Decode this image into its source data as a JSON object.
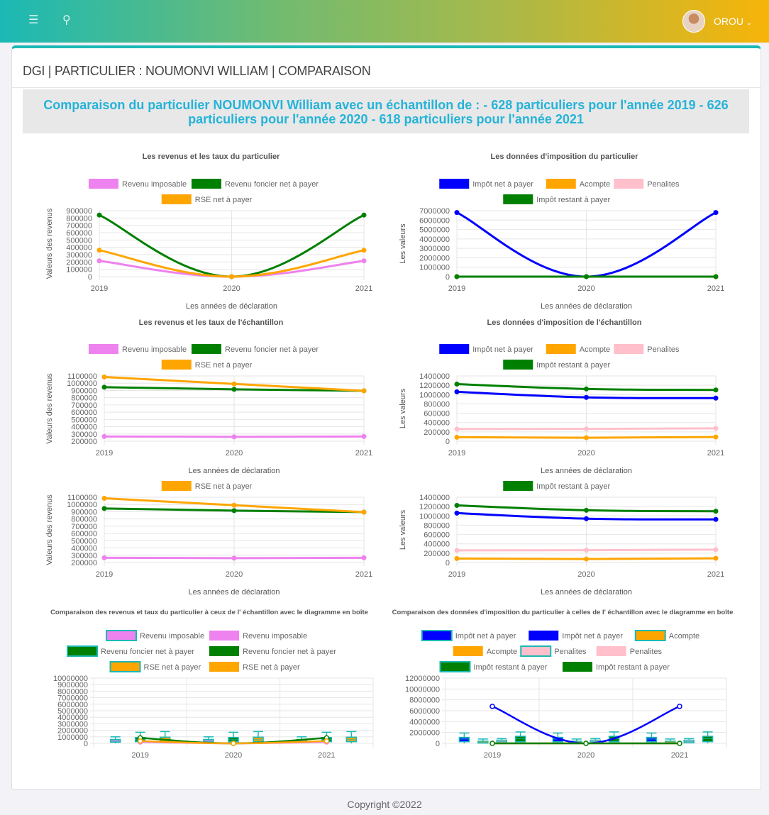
{
  "header": {
    "user_name": "OROU",
    "menu_icon": "bars-icon",
    "search_icon": "search-icon"
  },
  "page": {
    "title": "DGI | PARTICULIER : NOUMONVI WILLIAM | COMPARAISON",
    "banner": "Comparaison du particulier NOUMONVI William avec un échantillon de : - 628 particuliers pour l'année 2019 - 626 particuliers pour l'année 2020 - 618 particuliers pour l'année 2021"
  },
  "footer": {
    "text": "Copyright ©2022"
  },
  "colors": {
    "accent": "#1bb9b5",
    "banner_text": "#25b3d9",
    "violet": "#ee82ee",
    "green": "#008000",
    "orange": "#ffa500",
    "blue": "#0000ff",
    "pink": "#ffc0cb"
  },
  "chart_data": [
    {
      "id": "c1",
      "type": "line",
      "title": "Les revenus et les taux du particulier",
      "xlabel": "Les années de déclaration",
      "ylabel": "Valeurs des revenus",
      "categories": [
        "2019",
        "2020",
        "2021"
      ],
      "ylim": [
        0,
        900000
      ],
      "yticks": [
        "900000",
        "800000",
        "700000",
        "600000",
        "500000",
        "400000",
        "300000",
        "200000",
        "100000",
        "0"
      ],
      "legend": [
        [
          "Revenu imposable",
          "Revenu foncier net à payer"
        ],
        [
          "RSE net à payer"
        ]
      ],
      "series": [
        {
          "name": "Revenu imposable",
          "color": "#ee82ee",
          "values": [
            215000,
            0,
            215000
          ]
        },
        {
          "name": "Revenu foncier net à payer",
          "color": "#008000",
          "values": [
            840000,
            0,
            840000
          ]
        },
        {
          "name": "RSE net à payer",
          "color": "#ffa500",
          "values": [
            360000,
            0,
            360000
          ]
        }
      ]
    },
    {
      "id": "c2",
      "type": "line",
      "title": "Les données d'imposition du particulier",
      "xlabel": "Les années de déclaration",
      "ylabel": "Les valeurs",
      "categories": [
        "2019",
        "2020",
        "2021"
      ],
      "ylim": [
        0,
        7000000
      ],
      "yticks": [
        "7000000",
        "6000000",
        "5000000",
        "4000000",
        "3000000",
        "2000000",
        "1000000",
        "0"
      ],
      "legend": [
        [
          "Impôt net à payer",
          "Acompte",
          "Penalites"
        ],
        [
          "Impôt restant à payer"
        ]
      ],
      "series": [
        {
          "name": "Impôt net à payer",
          "color": "#0000ff",
          "values": [
            6800000,
            0,
            6800000
          ]
        },
        {
          "name": "Acompte",
          "color": "#ffa500",
          "values": [
            0,
            0,
            0
          ]
        },
        {
          "name": "Penalites",
          "color": "#ffc0cb",
          "values": [
            0,
            0,
            0
          ]
        },
        {
          "name": "Impôt restant à payer",
          "color": "#008000",
          "values": [
            0,
            0,
            0
          ]
        }
      ]
    },
    {
      "id": "c3",
      "type": "line",
      "title": "Les revenus et les taux de l'échantillon",
      "xlabel": "Les années de déclaration",
      "ylabel": "Valeurs des revenus",
      "categories": [
        "2019",
        "2020",
        "2021"
      ],
      "ylim": [
        200000,
        1100000
      ],
      "yticks": [
        "1100000",
        "1000000",
        "900000",
        "800000",
        "700000",
        "600000",
        "500000",
        "400000",
        "300000",
        "200000"
      ],
      "legend": [
        [
          "Revenu imposable",
          "Revenu foncier net à payer"
        ],
        [
          "RSE net à payer"
        ]
      ],
      "series": [
        {
          "name": "Revenu imposable",
          "color": "#ee82ee",
          "values": [
            265000,
            260000,
            265000
          ]
        },
        {
          "name": "Revenu foncier net à payer",
          "color": "#008000",
          "values": [
            945000,
            915000,
            895000
          ]
        },
        {
          "name": "RSE net à payer",
          "color": "#ffa500",
          "values": [
            1085000,
            990000,
            895000
          ]
        }
      ]
    },
    {
      "id": "c4",
      "type": "line",
      "title": "Les données d'imposition de l'échantillon",
      "xlabel": "Les années de déclaration",
      "ylabel": "Les valeurs",
      "categories": [
        "2019",
        "2020",
        "2021"
      ],
      "ylim": [
        0,
        1400000
      ],
      "yticks": [
        "1400000",
        "1200000",
        "1000000",
        "800000",
        "600000",
        "400000",
        "200000",
        "0"
      ],
      "legend": [
        [
          "Impôt net à payer",
          "Acompte",
          "Penalites"
        ],
        [
          "Impôt restant à payer"
        ]
      ],
      "series": [
        {
          "name": "Impôt net à payer",
          "color": "#0000ff",
          "values": [
            1060000,
            940000,
            925000
          ]
        },
        {
          "name": "Acompte",
          "color": "#ffa500",
          "values": [
            85000,
            75000,
            90000
          ]
        },
        {
          "name": "Penalites",
          "color": "#ffc0cb",
          "values": [
            260000,
            265000,
            275000
          ]
        },
        {
          "name": "Impôt restant à payer",
          "color": "#008000",
          "values": [
            1225000,
            1120000,
            1100000
          ]
        }
      ]
    },
    {
      "id": "c5",
      "type": "line",
      "title": "",
      "xlabel": "Les années de déclaration",
      "ylabel": "Valeurs des revenus",
      "categories": [
        "2019",
        "2020",
        "2021"
      ],
      "ylim": [
        200000,
        1100000
      ],
      "yticks": [
        "1100000",
        "1000000",
        "900000",
        "800000",
        "700000",
        "600000",
        "500000",
        "400000",
        "300000",
        "200000"
      ],
      "legend": [
        [
          "RSE net à payer"
        ]
      ],
      "series": [
        {
          "name": "Revenu imposable",
          "color": "#ee82ee",
          "values": [
            265000,
            260000,
            265000
          ]
        },
        {
          "name": "Revenu foncier net à payer",
          "color": "#008000",
          "values": [
            945000,
            915000,
            895000
          ]
        },
        {
          "name": "RSE net à payer",
          "color": "#ffa500",
          "values": [
            1085000,
            990000,
            895000
          ]
        }
      ]
    },
    {
      "id": "c6",
      "type": "line",
      "title": "",
      "xlabel": "Les années de déclaration",
      "ylabel": "Les valeurs",
      "categories": [
        "2019",
        "2020",
        "2021"
      ],
      "ylim": [
        0,
        1400000
      ],
      "yticks": [
        "1400000",
        "1200000",
        "1000000",
        "800000",
        "600000",
        "400000",
        "200000",
        "0"
      ],
      "legend": [
        [
          "Impôt restant à payer"
        ]
      ],
      "series": [
        {
          "name": "Impôt net à payer",
          "color": "#0000ff",
          "values": [
            1060000,
            940000,
            925000
          ]
        },
        {
          "name": "Acompte",
          "color": "#ffa500",
          "values": [
            85000,
            75000,
            90000
          ]
        },
        {
          "name": "Penalites",
          "color": "#ffc0cb",
          "values": [
            260000,
            265000,
            275000
          ]
        },
        {
          "name": "Impôt restant à payer",
          "color": "#008000",
          "values": [
            1225000,
            1120000,
            1100000
          ]
        }
      ]
    },
    {
      "id": "c7",
      "type": "boxplot",
      "title": "Comparaison des revenus et taux du particulier à ceux de l' échantillon avec le diagramme en boîte",
      "categories": [
        "2019",
        "2020",
        "2021"
      ],
      "ylim": [
        0,
        10000000
      ],
      "yticks": [
        "10000000",
        "9000000",
        "8000000",
        "7000000",
        "6000000",
        "5000000",
        "4000000",
        "3000000",
        "2000000",
        "1000000",
        "0"
      ],
      "legend": [
        [
          {
            "name": "Revenu imposable",
            "color": "#ee82ee",
            "box": true
          },
          {
            "name": "Revenu imposable",
            "color": "#ee82ee"
          }
        ],
        [
          {
            "name": "Revenu foncier net à payer",
            "color": "#008000",
            "box": true
          },
          {
            "name": "Revenu foncier net à payer",
            "color": "#008000"
          }
        ],
        [
          {
            "name": "RSE net à payer",
            "color": "#ffa500",
            "box": true
          },
          {
            "name": "RSE net à payer",
            "color": "#ffa500"
          }
        ]
      ],
      "boxes": [
        {
          "name": "Revenu imposable",
          "color": "#ee82ee",
          "stats": [
            [
              0,
              180000,
              350000,
              600000,
              1000000
            ],
            [
              0,
              180000,
              350000,
              600000,
              1000000
            ],
            [
              0,
              180000,
              350000,
              600000,
              1000000
            ]
          ]
        },
        {
          "name": "Revenu foncier net à payer",
          "color": "#008000",
          "stats": [
            [
              0,
              250000,
              550000,
              900000,
              1700000
            ],
            [
              0,
              250000,
              550000,
              900000,
              1700000
            ],
            [
              0,
              250000,
              550000,
              900000,
              1700000
            ]
          ]
        },
        {
          "name": "RSE net à payer",
          "color": "#ffa500",
          "stats": [
            [
              0,
              250000,
              550000,
              950000,
              1800000
            ],
            [
              0,
              250000,
              550000,
              950000,
              1800000
            ],
            [
              0,
              250000,
              550000,
              950000,
              1800000
            ]
          ]
        }
      ],
      "series": [
        {
          "name": "Revenu imposable",
          "color": "#ee82ee",
          "values": [
            215000,
            0,
            215000
          ]
        },
        {
          "name": "Revenu foncier net à payer",
          "color": "#008000",
          "values": [
            840000,
            0,
            840000
          ]
        },
        {
          "name": "RSE net à payer",
          "color": "#ffa500",
          "values": [
            360000,
            0,
            360000
          ]
        }
      ]
    },
    {
      "id": "c8",
      "type": "boxplot",
      "title": "Comparaison des données d'imposition du particulier à celles de l' échantillon avec le diagramme en boîte",
      "categories": [
        "2019",
        "2020",
        "2021"
      ],
      "ylim": [
        0,
        12000000
      ],
      "yticks": [
        "12000000",
        "10000000",
        "8000000",
        "6000000",
        "4000000",
        "2000000",
        "0"
      ],
      "legend": [
        [
          {
            "name": "Impôt net à payer",
            "color": "#0000ff",
            "box": true
          },
          {
            "name": "Impôt net à payer",
            "color": "#0000ff"
          },
          {
            "name": "Acompte",
            "color": "#ffa500",
            "box": true
          }
        ],
        [
          {
            "name": "Acompte",
            "color": "#ffa500"
          },
          {
            "name": "Penalites",
            "color": "#ffc0cb",
            "box": true
          },
          {
            "name": "Penalites",
            "color": "#ffc0cb"
          }
        ],
        [
          {
            "name": "Impôt restant à payer",
            "color": "#008000",
            "box": true
          },
          {
            "name": "Impôt restant à payer",
            "color": "#008000"
          }
        ]
      ],
      "boxes": [
        {
          "name": "Impôt net à payer",
          "color": "#0000ff",
          "stats": [
            [
              0,
              300000,
              800000,
              1100000,
              1900000
            ],
            [
              0,
              300000,
              800000,
              1100000,
              1900000
            ],
            [
              0,
              300000,
              800000,
              1100000,
              1900000
            ]
          ]
        },
        {
          "name": "Acompte",
          "color": "#ffa500",
          "stats": [
            [
              0,
              50000,
              150000,
              400000,
              800000
            ],
            [
              0,
              50000,
              150000,
              400000,
              800000
            ],
            [
              0,
              50000,
              150000,
              400000,
              800000
            ]
          ]
        },
        {
          "name": "Penalites",
          "color": "#ffc0cb",
          "stats": [
            [
              0,
              100000,
              300000,
              600000,
              900000
            ],
            [
              0,
              100000,
              300000,
              600000,
              900000
            ],
            [
              0,
              100000,
              300000,
              600000,
              900000
            ]
          ]
        },
        {
          "name": "Impôt restant à payer",
          "color": "#008000",
          "stats": [
            [
              0,
              300000,
              900000,
              1300000,
              2100000
            ],
            [
              0,
              300000,
              900000,
              1300000,
              2100000
            ],
            [
              0,
              300000,
              900000,
              1300000,
              2100000
            ]
          ]
        }
      ],
      "series": [
        {
          "name": "Impôt net à payer",
          "color": "#0000ff",
          "values": [
            6800000,
            0,
            6800000
          ]
        },
        {
          "name": "Acompte",
          "color": "#ffa500",
          "values": [
            0,
            0,
            0
          ]
        },
        {
          "name": "Penalites",
          "color": "#ffc0cb",
          "values": [
            0,
            0,
            0
          ]
        },
        {
          "name": "Impôt restant à payer",
          "color": "#008000",
          "values": [
            0,
            0,
            0
          ]
        }
      ]
    }
  ]
}
